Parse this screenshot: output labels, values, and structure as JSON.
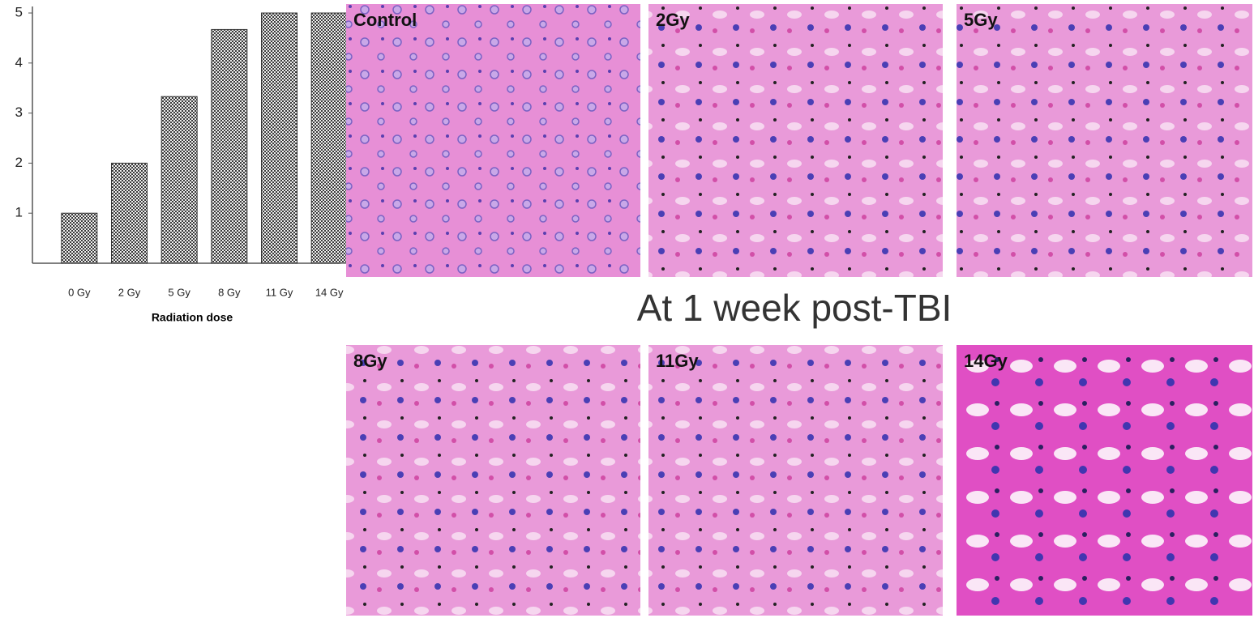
{
  "chart_data": {
    "type": "bar",
    "x_label": "Radiation dose",
    "categories": [
      "0 Gy",
      "2 Gy",
      "5 Gy",
      "8 Gy",
      "11 Gy",
      "14 Gy"
    ],
    "values": [
      1,
      2,
      3.33,
      4.67,
      5,
      5
    ],
    "color": "#3a3a3a",
    "ylim": [
      0,
      5.13
    ],
    "yticks": [
      1,
      2,
      3,
      4,
      5
    ],
    "grid": false
  },
  "panels": [
    "Control",
    "2Gy",
    "5Gy",
    "8Gy",
    "11Gy",
    "14Gy"
  ],
  "caption": "At 1 week post-TBI"
}
